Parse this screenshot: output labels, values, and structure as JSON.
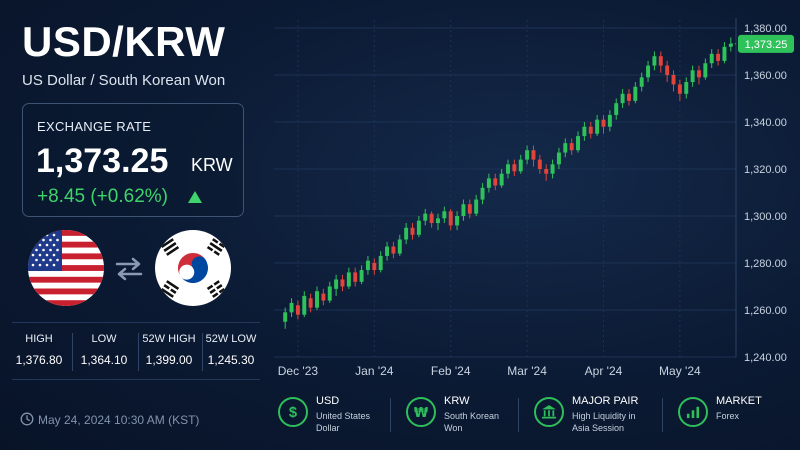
{
  "header": {
    "pair": "USD/KRW",
    "subtitle": "US Dollar / South Korean Won"
  },
  "rate_box": {
    "label": "EXCHANGE RATE",
    "value": "1,373.25",
    "unit": "KRW",
    "change": "+8.45 (+0.62%)"
  },
  "stats": [
    {
      "label": "HIGH",
      "value": "1,376.80"
    },
    {
      "label": "LOW",
      "value": "1,364.10"
    },
    {
      "label": "52W HIGH",
      "value": "1,399.00"
    },
    {
      "label": "52W LOW",
      "value": "1,245.30"
    }
  ],
  "timestamp": "May 24, 2024 10:30 AM (KST)",
  "colors": {
    "up": "#2fc25b",
    "down": "#e0443a",
    "accent": "#2fbf5a",
    "background": "#0b1a33"
  },
  "features": [
    {
      "icon": "dollar-icon",
      "title": "USD",
      "desc": "United States Dollar"
    },
    {
      "icon": "won-icon",
      "title": "KRW",
      "desc": "South Korean Won"
    },
    {
      "icon": "bank-icon",
      "title": "MAJOR PAIR",
      "desc": "High Liquidity in Asia Session"
    },
    {
      "icon": "bar-chart-icon",
      "title": "MARKET",
      "desc": "Forex"
    }
  ],
  "chart_data": {
    "type": "candlestick",
    "x_tick_labels": [
      "Dec '23",
      "Jan '24",
      "Feb '24",
      "Mar '24",
      "Apr '24",
      "May '24"
    ],
    "y_ticks": [
      1240,
      1260,
      1280,
      1300,
      1320,
      1340,
      1360,
      1380
    ],
    "y_tick_labels": [
      "1,240.00",
      "1,260.00",
      "1,280.00",
      "1,300.00",
      "1,320.00",
      "1,340.00",
      "1,360.00",
      "1,380.00"
    ],
    "ylim": [
      1240,
      1380
    ],
    "current_price": 1373.25,
    "current_label": "1,373.25",
    "grid": true,
    "candles": [
      [
        1255,
        1259,
        1252,
        1261
      ],
      [
        1259,
        1263,
        1257,
        1265
      ],
      [
        1262,
        1258,
        1256,
        1264
      ],
      [
        1258,
        1266,
        1257,
        1268
      ],
      [
        1265,
        1261,
        1259,
        1267
      ],
      [
        1261,
        1268,
        1260,
        1270
      ],
      [
        1267,
        1264,
        1262,
        1269
      ],
      [
        1264,
        1270,
        1263,
        1272
      ],
      [
        1269,
        1273,
        1266,
        1275
      ],
      [
        1273,
        1270,
        1268,
        1275
      ],
      [
        1270,
        1276,
        1269,
        1278
      ],
      [
        1276,
        1272,
        1270,
        1278
      ],
      [
        1272,
        1277,
        1271,
        1279
      ],
      [
        1277,
        1281,
        1275,
        1283
      ],
      [
        1280,
        1277,
        1275,
        1282
      ],
      [
        1277,
        1283,
        1276,
        1285
      ],
      [
        1283,
        1287,
        1281,
        1289
      ],
      [
        1287,
        1284,
        1282,
        1289
      ],
      [
        1284,
        1290,
        1283,
        1292
      ],
      [
        1290,
        1295,
        1288,
        1297
      ],
      [
        1295,
        1292,
        1290,
        1297
      ],
      [
        1292,
        1298,
        1291,
        1300
      ],
      [
        1298,
        1301,
        1296,
        1303
      ],
      [
        1301,
        1297,
        1295,
        1302
      ],
      [
        1297,
        1299,
        1294,
        1301
      ],
      [
        1299,
        1302,
        1297,
        1304
      ],
      [
        1302,
        1296,
        1294,
        1303
      ],
      [
        1296,
        1300,
        1294,
        1302
      ],
      [
        1300,
        1305,
        1298,
        1307
      ],
      [
        1305,
        1301,
        1299,
        1307
      ],
      [
        1301,
        1307,
        1300,
        1309
      ],
      [
        1307,
        1312,
        1305,
        1314
      ],
      [
        1312,
        1316,
        1310,
        1318
      ],
      [
        1316,
        1313,
        1311,
        1318
      ],
      [
        1313,
        1318,
        1312,
        1320
      ],
      [
        1318,
        1322,
        1316,
        1324
      ],
      [
        1322,
        1319,
        1317,
        1324
      ],
      [
        1319,
        1324,
        1318,
        1326
      ],
      [
        1324,
        1328,
        1322,
        1330
      ],
      [
        1328,
        1324,
        1321,
        1330
      ],
      [
        1324,
        1320,
        1318,
        1326
      ],
      [
        1320,
        1318,
        1315,
        1322
      ],
      [
        1318,
        1322,
        1316,
        1324
      ],
      [
        1322,
        1327,
        1320,
        1329
      ],
      [
        1327,
        1331,
        1325,
        1333
      ],
      [
        1331,
        1328,
        1326,
        1333
      ],
      [
        1328,
        1334,
        1327,
        1336
      ],
      [
        1334,
        1338,
        1332,
        1340
      ],
      [
        1338,
        1335,
        1333,
        1340
      ],
      [
        1335,
        1341,
        1334,
        1343
      ],
      [
        1341,
        1338,
        1335,
        1343
      ],
      [
        1338,
        1343,
        1336,
        1345
      ],
      [
        1343,
        1348,
        1341,
        1350
      ],
      [
        1348,
        1352,
        1346,
        1354
      ],
      [
        1352,
        1349,
        1347,
        1354
      ],
      [
        1349,
        1355,
        1348,
        1357
      ],
      [
        1355,
        1359,
        1353,
        1361
      ],
      [
        1359,
        1364,
        1357,
        1366
      ],
      [
        1364,
        1368,
        1362,
        1370
      ],
      [
        1368,
        1364,
        1361,
        1370
      ],
      [
        1364,
        1360,
        1357,
        1366
      ],
      [
        1360,
        1356,
        1353,
        1362
      ],
      [
        1356,
        1352,
        1349,
        1358
      ],
      [
        1352,
        1357,
        1350,
        1359
      ],
      [
        1357,
        1362,
        1355,
        1364
      ],
      [
        1362,
        1359,
        1356,
        1364
      ],
      [
        1359,
        1365,
        1358,
        1367
      ],
      [
        1365,
        1369,
        1363,
        1371
      ],
      [
        1369,
        1366,
        1364,
        1371
      ],
      [
        1366,
        1372,
        1365,
        1374
      ],
      [
        1372,
        1373.25,
        1370,
        1376
      ]
    ]
  }
}
